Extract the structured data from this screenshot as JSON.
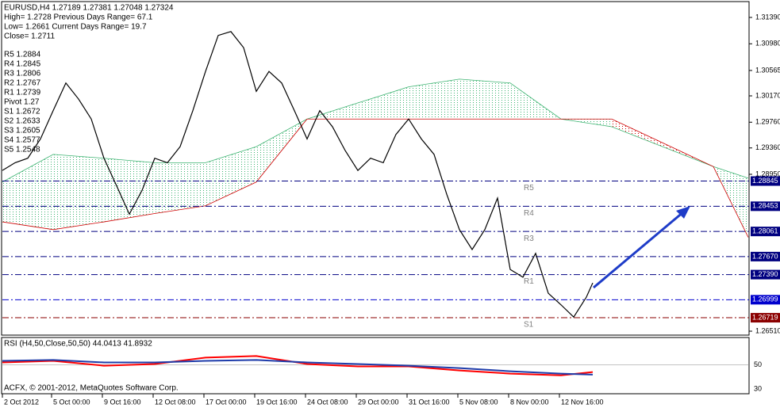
{
  "chart_data": [
    {
      "type": "line",
      "title": "EURUSD,H4  1.27189 1.27381 1.27048 1.27324",
      "info_lines": [
        "High= 1.2728   Previous Days Range= 67.1",
        "Low= 1.2661   Current Days Range= 19.7",
        "Close= 1.2711"
      ],
      "pivot_lines": [
        "R5 1.2884",
        "R4 1.2845",
        "R3 1.2806",
        "R2 1.2767",
        "R1 1.2739",
        "Pivot 1.27",
        "S1 1.2672",
        "S2 1.2633",
        "S3 1.2605",
        "S4 1.2577",
        "S5 1.2548"
      ],
      "xlim": [
        0,
        235.25
      ],
      "xticks": [
        {
          "value": 0,
          "label": "2 Oct 2012"
        },
        {
          "value": 15.5,
          "label": "5 Oct 00:00"
        },
        {
          "value": 31.5,
          "label": "9 Oct 16:00"
        },
        {
          "value": 47.5,
          "label": "12 Oct 08:00"
        },
        {
          "value": 63.5,
          "label": "17 Oct 00:00"
        },
        {
          "value": 79.5,
          "label": "19 Oct 16:00"
        },
        {
          "value": 95.5,
          "label": "24 Oct 08:00"
        },
        {
          "value": 111.5,
          "label": "29 Oct 00:00"
        },
        {
          "value": 127.5,
          "label": "31 Oct 16:00"
        },
        {
          "value": 143.5,
          "label": "5 Nov 08:00"
        },
        {
          "value": 159.5,
          "label": "8 Nov 00:00"
        },
        {
          "value": 175.5,
          "label": "12 Nov 16:00"
        }
      ],
      "ylim": [
        1.26461,
        1.31624
      ],
      "yticks": [
        {
          "value": 1.3139,
          "label": "1.31390"
        },
        {
          "value": 1.3098,
          "label": "1.30980"
        },
        1.30565,
        {
          "value": 1.3017,
          "label": "1.30170"
        },
        {
          "value": 1.2976,
          "label": "1.29760"
        },
        {
          "value": 1.2936,
          "label": "1.29360"
        },
        {
          "value": 1.2895,
          "label": "1.28950"
        },
        {
          "value": 1.2651,
          "label": "1.26510"
        }
      ],
      "levels": [
        {
          "value": 1.28845,
          "label": "1.28845",
          "tag": "R5",
          "color": "#000080"
        },
        {
          "value": 1.28453,
          "label": "1.28453",
          "tag": "R4",
          "color": "#000080"
        },
        {
          "value": 1.28061,
          "label": "1.28061",
          "tag": "R3",
          "color": "#000080"
        },
        {
          "value": 1.2767,
          "label": "1.27670",
          "color": "#000080"
        },
        {
          "value": 1.2739,
          "label": "1.27390",
          "tag": "R1",
          "color": "#000080"
        },
        {
          "value": 1.26999,
          "label": "1.26999",
          "color": "#0000cd"
        },
        {
          "value": 1.26719,
          "label": "1.26719",
          "tag": "S1",
          "color": "#8b0000"
        }
      ],
      "cloud": {
        "x": [
          0,
          16,
          32,
          48,
          64,
          80,
          96,
          112,
          128,
          144,
          160,
          176,
          192,
          208,
          224,
          235
        ],
        "span_a": [
          1.2883,
          1.2926,
          1.292,
          1.2913,
          1.2913,
          1.2938,
          1.2981,
          1.3006,
          1.3031,
          1.3043,
          1.3037,
          1.2981,
          1.2969,
          1.2938,
          1.2907,
          1.2889
        ],
        "span_b": [
          1.2821,
          1.2809,
          1.2821,
          1.2834,
          1.2846,
          1.2883,
          1.2981,
          1.2981,
          1.2981,
          1.2981,
          1.2981,
          1.2981,
          1.2981,
          1.2944,
          1.2907,
          1.2797
        ],
        "up_color": "#3cb371",
        "down_color": "#cd0000"
      },
      "series": [
        {
          "color": "#000000",
          "x": [
            0,
            4,
            8,
            12,
            16,
            20,
            24,
            28,
            32,
            36,
            40,
            44,
            48,
            52,
            56,
            60,
            64,
            68,
            72,
            76,
            80,
            84,
            88,
            92,
            96,
            100,
            104,
            108,
            112,
            116,
            120,
            124,
            128,
            132,
            136,
            140,
            144,
            148,
            152,
            156,
            160,
            164,
            168,
            172,
            176,
            180,
            184,
            186
          ],
          "values": [
            1.2901,
            1.2913,
            1.292,
            1.295,
            1.2994,
            1.3037,
            1.3012,
            1.2981,
            1.292,
            1.2877,
            1.2833,
            1.287,
            1.292,
            1.2913,
            1.2938,
            1.2994,
            1.3055,
            1.3111,
            1.3117,
            1.3092,
            1.3024,
            1.3055,
            1.3037,
            1.2994,
            1.295,
            1.2994,
            1.2969,
            1.2932,
            1.2901,
            1.292,
            1.2913,
            1.2957,
            1.2981,
            1.295,
            1.2926,
            1.2864,
            1.2809,
            1.2778,
            1.2809,
            1.2858,
            1.2747,
            1.2735,
            1.2772,
            1.271,
            1.2692,
            1.2673,
            1.2704,
            1.2726
          ]
        }
      ]
    },
    {
      "type": "line",
      "title": "RSI (H4,50,Close,50,50) 44.0413 41.8932",
      "xlim": [
        0,
        235.25
      ],
      "ylim": [
        26,
        72.7
      ],
      "yticks": [
        50,
        30
      ],
      "series": [
        {
          "color": "#ff0000",
          "x": [
            0,
            16,
            32,
            48,
            64,
            80,
            96,
            112,
            128,
            144,
            160,
            176,
            186
          ],
          "values": [
            52,
            53.3,
            49.3,
            50.7,
            56,
            57.3,
            50.7,
            48.7,
            48.7,
            45.3,
            42.7,
            41.3,
            44.04
          ]
        },
        {
          "color": "#1e3caa",
          "x": [
            0,
            16,
            32,
            48,
            64,
            80,
            96,
            112,
            128,
            144,
            160,
            176,
            186
          ],
          "values": [
            53.3,
            54,
            52,
            52,
            53.3,
            54,
            52,
            50.7,
            49.3,
            47.3,
            44.7,
            42.7,
            41.89
          ]
        }
      ]
    }
  ],
  "footer": "ACFX, © 2001-2012, MetaQuotes Software Corp."
}
